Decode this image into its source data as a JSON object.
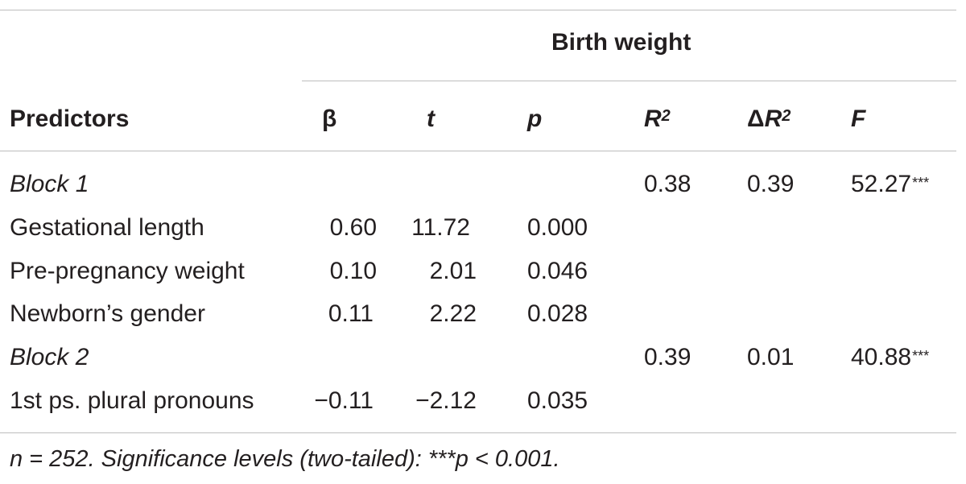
{
  "table": {
    "group_header": "Birth weight",
    "columns": {
      "predictors": "Predictors",
      "beta": "β",
      "t": "t",
      "p": "p",
      "r2_base": "R",
      "r2_exp": "2",
      "dr2_delta": "Δ",
      "dr2_base": "R",
      "dr2_exp": "2",
      "f": "F"
    },
    "rows": [
      {
        "label": "Block 1",
        "beta": "",
        "t": "",
        "p": "",
        "r2": "0.38",
        "dr2": "0.39",
        "f": "52.27",
        "f_sig": "***"
      },
      {
        "label": "Gestational length",
        "beta": "0.60",
        "t": "11.72",
        "p": "0.000",
        "r2": "",
        "dr2": "",
        "f": "",
        "f_sig": ""
      },
      {
        "label": "Pre-pregnancy weight",
        "beta": "0.10",
        "t": "2.01",
        "p": "0.046",
        "r2": "",
        "dr2": "",
        "f": "",
        "f_sig": ""
      },
      {
        "label": "Newborn’s gender",
        "beta": "0.11",
        "t": "2.22",
        "p": "0.028",
        "r2": "",
        "dr2": "",
        "f": "",
        "f_sig": ""
      },
      {
        "label": "Block 2",
        "beta": "",
        "t": "",
        "p": "",
        "r2": "0.39",
        "dr2": "0.01",
        "f": "40.88",
        "f_sig": "***"
      },
      {
        "label": "1st ps. plural pronouns",
        "beta": "−0.11",
        "t": "−2.12",
        "p": "0.035",
        "r2": "",
        "dr2": "",
        "f": "",
        "f_sig": ""
      }
    ],
    "footnote": "n = 252. Significance levels (two-tailed): ***p < 0.001."
  }
}
